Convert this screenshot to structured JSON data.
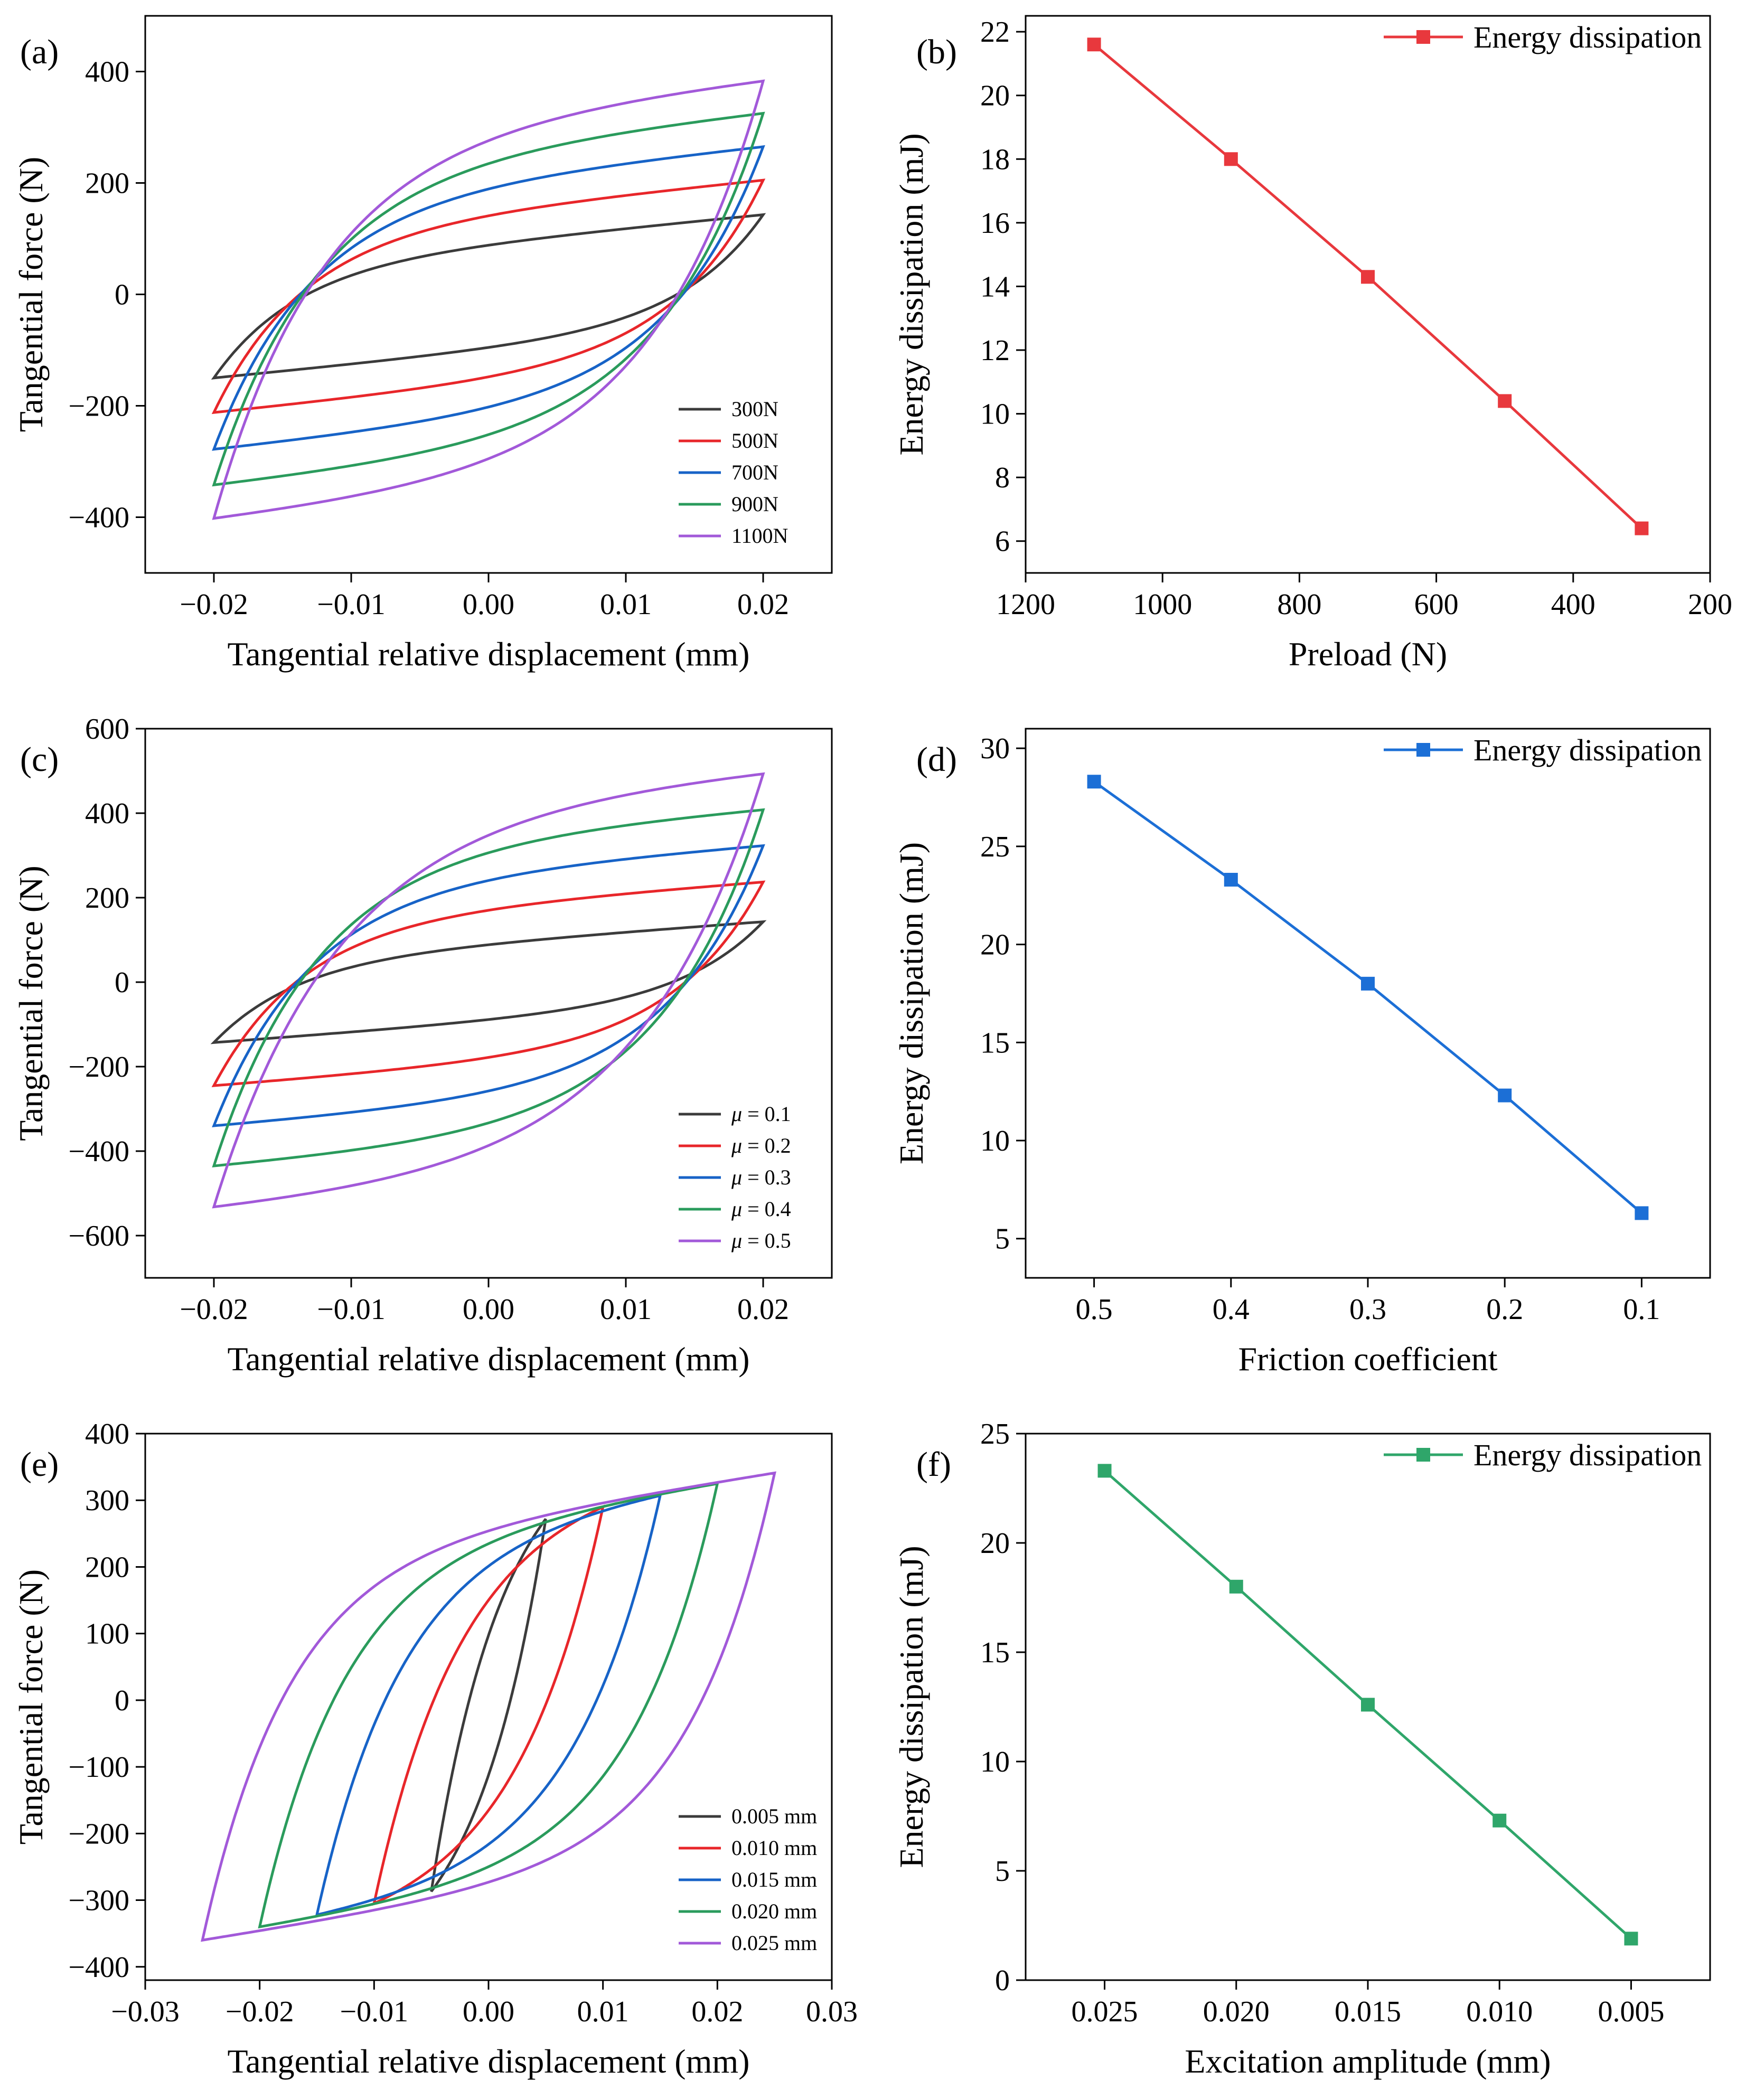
{
  "chart_data": [
    {
      "type": "line",
      "panel_label": "(a)",
      "xlabel": "Tangential relative displacement (mm)",
      "ylabel": "Tangential force (N)",
      "xlim": [
        -0.025,
        0.025
      ],
      "ylim": [
        -500,
        500
      ],
      "xticks": [
        -0.02,
        -0.01,
        0.0,
        0.01,
        0.02
      ],
      "xtick_labels": [
        "−0.02",
        "−0.01",
        "0.00",
        "0.01",
        "0.02"
      ],
      "yticks": [
        -400,
        -200,
        0,
        200,
        400
      ],
      "ytick_labels": [
        "−400",
        "−200",
        "0",
        "200",
        "400"
      ],
      "legend": "lower-right",
      "series": [
        {
          "name": "300N",
          "color": "#3b3b3b",
          "amplitude": 0.02,
          "f_max": 143,
          "f_min": -150,
          "slope": 2400,
          "knee": 0.006
        },
        {
          "name": "500N",
          "color": "#e8262a",
          "amplitude": 0.02,
          "f_max": 205,
          "f_min": -212,
          "slope": 2500,
          "knee": 0.0065
        },
        {
          "name": "700N",
          "color": "#1763c7",
          "amplitude": 0.02,
          "f_max": 265,
          "f_min": -278,
          "slope": 2600,
          "knee": 0.007
        },
        {
          "name": "900N",
          "color": "#2a9b5c",
          "amplitude": 0.02,
          "f_max": 325,
          "f_min": -342,
          "slope": 2700,
          "knee": 0.0075
        },
        {
          "name": "1100N",
          "color": "#a259d9",
          "amplitude": 0.02,
          "f_max": 383,
          "f_min": -402,
          "slope": 2800,
          "knee": 0.008
        }
      ]
    },
    {
      "type": "line",
      "panel_label": "(b)",
      "xlabel": "Preload (N)",
      "ylabel": "Energy dissipation (mJ)",
      "xlim": [
        1200,
        200
      ],
      "ylim": [
        5,
        22.5
      ],
      "xticks": [
        1200,
        1000,
        800,
        600,
        400,
        200
      ],
      "xtick_labels": [
        "1200",
        "1000",
        "800",
        "600",
        "400",
        "200"
      ],
      "yticks": [
        6,
        8,
        10,
        12,
        14,
        16,
        18,
        20,
        22
      ],
      "ytick_labels": [
        "6",
        "8",
        "10",
        "12",
        "14",
        "16",
        "18",
        "20",
        "22"
      ],
      "legend": "top-right",
      "series": [
        {
          "name": "Energy dissipation",
          "color": "#e8383d",
          "x": [
            1100,
            900,
            700,
            500,
            300
          ],
          "values": [
            21.6,
            18.0,
            14.3,
            10.4,
            6.4
          ]
        }
      ]
    },
    {
      "type": "line",
      "panel_label": "(c)",
      "xlabel": "Tangential relative displacement (mm)",
      "ylabel": "Tangential force (N)",
      "xlim": [
        -0.025,
        0.025
      ],
      "ylim": [
        -700,
        600
      ],
      "xticks": [
        -0.02,
        -0.01,
        0.0,
        0.01,
        0.02
      ],
      "xtick_labels": [
        "−0.02",
        "−0.01",
        "0.00",
        "0.01",
        "0.02"
      ],
      "yticks": [
        -600,
        -400,
        -200,
        0,
        200,
        400,
        600
      ],
      "ytick_labels": [
        "−600",
        "−400",
        "−200",
        "0",
        "200",
        "400",
        "600"
      ],
      "legend": "lower-right",
      "legend_symbol": "μ",
      "series": [
        {
          "name": "= 0.1",
          "color": "#3b3b3b",
          "amplitude": 0.02,
          "f_max": 143,
          "f_min": -143,
          "slope": 2400,
          "knee": 0.006
        },
        {
          "name": "= 0.2",
          "color": "#e8262a",
          "amplitude": 0.02,
          "f_max": 237,
          "f_min": -245,
          "slope": 2500,
          "knee": 0.0065
        },
        {
          "name": "= 0.3",
          "color": "#1763c7",
          "amplitude": 0.02,
          "f_max": 323,
          "f_min": -340,
          "slope": 2600,
          "knee": 0.007
        },
        {
          "name": "= 0.4",
          "color": "#2a9b5c",
          "amplitude": 0.02,
          "f_max": 408,
          "f_min": -435,
          "slope": 2700,
          "knee": 0.0075
        },
        {
          "name": "= 0.5",
          "color": "#a259d9",
          "amplitude": 0.02,
          "f_max": 493,
          "f_min": -532,
          "slope": 2800,
          "knee": 0.009
        }
      ]
    },
    {
      "type": "line",
      "panel_label": "(d)",
      "xlabel": "Friction coefficient",
      "ylabel": "Energy dissipation (mJ)",
      "xlim": [
        0.55,
        0.05
      ],
      "ylim": [
        3,
        31
      ],
      "xticks": [
        0.5,
        0.4,
        0.3,
        0.2,
        0.1
      ],
      "xtick_labels": [
        "0.5",
        "0.4",
        "0.3",
        "0.2",
        "0.1"
      ],
      "yticks": [
        5,
        10,
        15,
        20,
        25,
        30
      ],
      "ytick_labels": [
        "5",
        "10",
        "15",
        "20",
        "25",
        "30"
      ],
      "legend": "top-right",
      "series": [
        {
          "name": "Energy dissipation",
          "color": "#1c6fd6",
          "x": [
            0.5,
            0.4,
            0.3,
            0.2,
            0.1
          ],
          "values": [
            28.3,
            23.3,
            18.0,
            12.3,
            6.3
          ]
        }
      ]
    },
    {
      "type": "line",
      "panel_label": "(e)",
      "xlabel": "Tangential relative displacement (mm)",
      "ylabel": "Tangential force (N)",
      "xlim": [
        -0.03,
        0.03
      ],
      "ylim": [
        -420,
        400
      ],
      "xticks": [
        -0.03,
        -0.02,
        -0.01,
        0.0,
        0.01,
        0.02,
        0.03
      ],
      "xtick_labels": [
        "−0.03",
        "−0.02",
        "−0.01",
        "0.00",
        "0.01",
        "0.02",
        "0.03"
      ],
      "yticks": [
        -400,
        -300,
        -200,
        -100,
        0,
        100,
        200,
        300,
        400
      ],
      "ytick_labels": [
        "−400",
        "−300",
        "−200",
        "−100",
        "0",
        "100",
        "200",
        "300",
        "400"
      ],
      "legend": "lower-right",
      "series": [
        {
          "name": "0.005 mm",
          "color": "#3b3b3b",
          "amplitude": 0.005,
          "f_max": 272,
          "f_min": -287,
          "slope": 2700,
          "knee": 0.006
        },
        {
          "name": "0.010 mm",
          "color": "#e8262a",
          "amplitude": 0.01,
          "f_max": 290,
          "f_min": -305,
          "slope": 2700,
          "knee": 0.0075
        },
        {
          "name": "0.015 mm",
          "color": "#1763c7",
          "amplitude": 0.015,
          "f_max": 307,
          "f_min": -322,
          "slope": 2700,
          "knee": 0.0075
        },
        {
          "name": "0.020 mm",
          "color": "#2a9b5c",
          "amplitude": 0.02,
          "f_max": 325,
          "f_min": -340,
          "slope": 2700,
          "knee": 0.0075
        },
        {
          "name": "0.025 mm",
          "color": "#a259d9",
          "amplitude": 0.025,
          "f_max": 341,
          "f_min": -360,
          "slope": 2700,
          "knee": 0.0075
        }
      ]
    },
    {
      "type": "line",
      "panel_label": "(f)",
      "xlabel": "Excitation amplitude (mm)",
      "ylabel": "Energy dissipation (mJ)",
      "xlim": [
        0.028,
        0.002
      ],
      "ylim": [
        0,
        25
      ],
      "xticks": [
        0.025,
        0.02,
        0.015,
        0.01,
        0.005
      ],
      "xtick_labels": [
        "0.025",
        "0.020",
        "0.015",
        "0.010",
        "0.005"
      ],
      "yticks": [
        0,
        5,
        10,
        15,
        20,
        25
      ],
      "ytick_labels": [
        "0",
        "5",
        "10",
        "15",
        "20",
        "25"
      ],
      "legend": "top-right",
      "series": [
        {
          "name": "Energy dissipation",
          "color": "#2fa66a",
          "x": [
            0.025,
            0.02,
            0.015,
            0.01,
            0.005
          ],
          "values": [
            23.3,
            18.0,
            12.6,
            7.3,
            1.9
          ]
        }
      ]
    }
  ]
}
